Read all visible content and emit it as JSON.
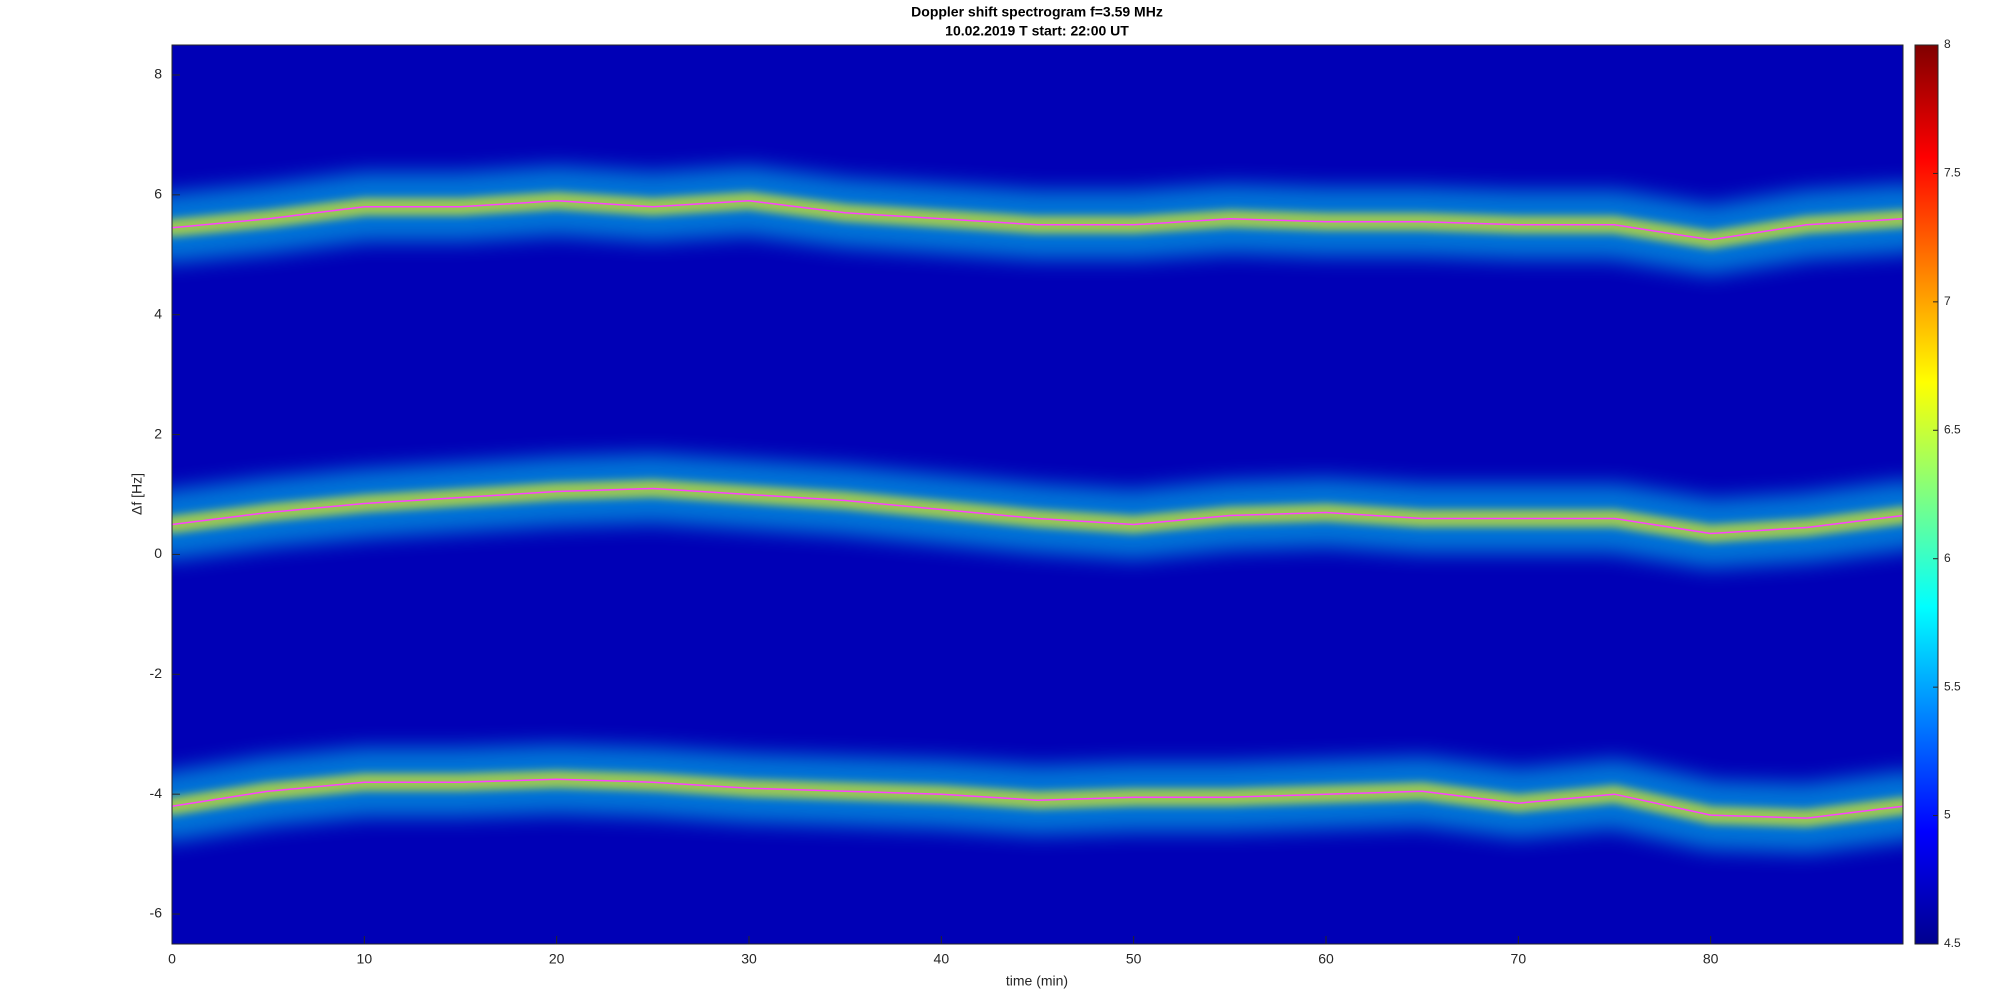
{
  "chart_data": {
    "type": "spectrogram",
    "title": "Doppler shift spectrogram f=3.59 MHz",
    "subtitle": "10.02.2019   T start: 22:00 UT",
    "xlabel": "time (min)",
    "ylabel": "Δf [Hz]",
    "xlim": [
      0,
      90
    ],
    "xticks": [
      0,
      10,
      20,
      30,
      40,
      50,
      60,
      70,
      80
    ],
    "ylim": [
      -6.5,
      8.5
    ],
    "yticks": [
      -6,
      -4,
      -2,
      0,
      2,
      4,
      6,
      8
    ],
    "clim": [
      4.5,
      8
    ],
    "cticks": [
      4.5,
      5,
      5.5,
      6,
      6.5,
      7,
      7.5,
      8
    ],
    "colormap": [
      "#00008f",
      "#0000ff",
      "#0080ff",
      "#00ffff",
      "#80ff80",
      "#ffff00",
      "#ff8000",
      "#ff0000",
      "#800000"
    ],
    "x": [
      0,
      5,
      10,
      15,
      20,
      25,
      30,
      35,
      40,
      45,
      50,
      55,
      60,
      65,
      70,
      75,
      80,
      85,
      90
    ],
    "series": [
      {
        "color": "#ff40ff",
        "values": [
          5.45,
          5.6,
          5.8,
          5.8,
          5.9,
          5.8,
          5.9,
          5.7,
          5.6,
          5.5,
          5.5,
          5.6,
          5.55,
          5.55,
          5.5,
          5.5,
          5.25,
          5.5,
          5.6
        ]
      },
      {
        "color": "#ff40ff",
        "values": [
          0.5,
          0.7,
          0.85,
          0.95,
          1.05,
          1.1,
          1.0,
          0.9,
          0.75,
          0.6,
          0.5,
          0.65,
          0.7,
          0.6,
          0.6,
          0.6,
          0.35,
          0.45,
          0.65
        ]
      },
      {
        "color": "#ff40ff",
        "values": [
          -4.2,
          -3.95,
          -3.8,
          -3.8,
          -3.75,
          -3.8,
          -3.9,
          -3.95,
          -4.0,
          -4.1,
          -4.05,
          -4.05,
          -4.0,
          -3.95,
          -4.15,
          -4.0,
          -4.35,
          -4.4,
          -4.2
        ]
      }
    ]
  }
}
